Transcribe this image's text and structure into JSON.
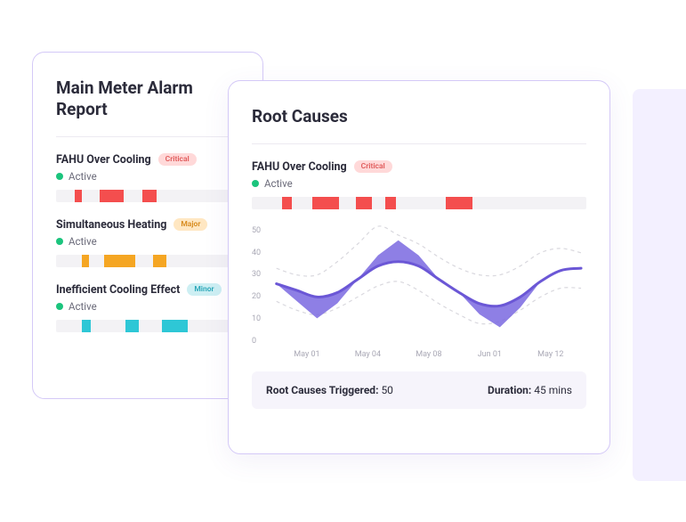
{
  "colors": {
    "card_border": "#d4c9f7",
    "text_primary": "#2b2b3a",
    "text_muted": "#6b6b7a",
    "divider": "#eceaf1",
    "track": "#f3f2f5",
    "status_active": "#1bc47d",
    "critical_bg": "#ffd9d9",
    "critical_fg": "#e05a5a",
    "major_bg": "#ffe7c2",
    "major_fg": "#d78a1c",
    "minor_bg": "#cdeff3",
    "minor_fg": "#2aa7b8",
    "seg_red": "#f44e4e",
    "seg_orange": "#f5a623",
    "seg_cyan": "#2ec7d6",
    "chart_line": "#6b57d6",
    "chart_fill": "#7a68e0",
    "chart_band": "#d9d8de",
    "summary_bg": "#f6f4fb",
    "bg_accent": "#f3f0ff"
  },
  "left": {
    "title": "Main Meter Alarm Report",
    "alarms": [
      {
        "name": "FAHU Over Cooling",
        "badge": "Critical",
        "badge_bg": "#ffd9d9",
        "badge_fg": "#e05a5a",
        "status": "Active",
        "status_color": "#1bc47d",
        "seg_color": "#f44e4e",
        "segments": [
          [
            10,
            4
          ],
          [
            24,
            13
          ],
          [
            47,
            8
          ]
        ]
      },
      {
        "name": "Simultaneous Heating",
        "badge": "Major",
        "badge_bg": "#ffe7c2",
        "badge_fg": "#d78a1c",
        "status": "Active",
        "status_color": "#1bc47d",
        "seg_color": "#f5a623",
        "segments": [
          [
            14,
            4
          ],
          [
            26,
            17
          ],
          [
            53,
            7
          ]
        ]
      },
      {
        "name": "Inefficient Cooling Effect",
        "badge": "Minor",
        "badge_bg": "#cdeff3",
        "badge_fg": "#2aa7b8",
        "status": "Active",
        "status_color": "#1bc47d",
        "seg_color": "#2ec7d6",
        "segments": [
          [
            14,
            5
          ],
          [
            38,
            7
          ],
          [
            58,
            14
          ]
        ]
      }
    ]
  },
  "right": {
    "title": "Root Causes",
    "alarm": {
      "name": "FAHU Over Cooling",
      "badge": "Critical",
      "badge_bg": "#ffd9d9",
      "badge_fg": "#e05a5a",
      "status": "Active",
      "status_color": "#1bc47d",
      "seg_color": "#f44e4e",
      "segments": [
        [
          9,
          3
        ],
        [
          18,
          8
        ],
        [
          31,
          5
        ],
        [
          40,
          3
        ],
        [
          58,
          8
        ]
      ]
    },
    "chart": {
      "type": "line",
      "ylim": [
        0,
        50
      ],
      "yticks": [
        0,
        10,
        20,
        30,
        40,
        50
      ],
      "xticks": [
        "May 01",
        "May 04",
        "May 08",
        "Jun 01",
        "May 12"
      ],
      "line_color": "#6b57d6",
      "fill_color": "#7a68e0",
      "band_color": "#d9d8de",
      "line_width": 3,
      "main": [
        26,
        23,
        20,
        22,
        28,
        34,
        36,
        34,
        28,
        22,
        17,
        16,
        20,
        27,
        32,
        33
      ],
      "upper": [
        33,
        30,
        30,
        36,
        44,
        52,
        48,
        44,
        38,
        33,
        30,
        30,
        34,
        40,
        42,
        40
      ],
      "lower": [
        18,
        14,
        12,
        15,
        20,
        25,
        27,
        23,
        17,
        12,
        8,
        9,
        14,
        20,
        24,
        24
      ]
    },
    "summary": {
      "triggered_label": "Root Causes Triggered:",
      "triggered_value": "50",
      "duration_label": "Duration:",
      "duration_value": "45 mins"
    }
  }
}
